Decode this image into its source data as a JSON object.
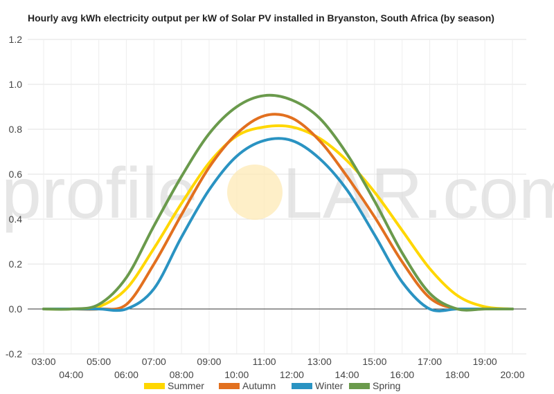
{
  "chart_data": {
    "type": "line",
    "title": "Hourly avg kWh electricity output per kW of Solar PV installed in Bryanston, South Africa (by season)",
    "xlabel": "",
    "ylabel": "",
    "ylim": [
      -0.2,
      1.2
    ],
    "yticks": [
      "-0.2",
      "0.0",
      "0.2",
      "0.4",
      "0.6",
      "0.8",
      "1.0",
      "1.2"
    ],
    "x": [
      "03:00",
      "04:00",
      "05:00",
      "06:00",
      "07:00",
      "08:00",
      "09:00",
      "10:00",
      "11:00",
      "12:00",
      "13:00",
      "14:00",
      "15:00",
      "16:00",
      "17:00",
      "18:00",
      "19:00",
      "20:00"
    ],
    "grid": true,
    "legend": "bottom",
    "series": [
      {
        "name": "Summer",
        "color": "#ffd700",
        "values": [
          0.0,
          0.0,
          0.01,
          0.09,
          0.27,
          0.47,
          0.65,
          0.77,
          0.81,
          0.81,
          0.76,
          0.66,
          0.52,
          0.35,
          0.18,
          0.06,
          0.01,
          0.0
        ]
      },
      {
        "name": "Autumn",
        "color": "#e2701f",
        "values": [
          0.0,
          0.0,
          0.0,
          0.02,
          0.2,
          0.42,
          0.63,
          0.78,
          0.86,
          0.85,
          0.75,
          0.59,
          0.41,
          0.21,
          0.05,
          0.0,
          0.0,
          0.0
        ]
      },
      {
        "name": "Winter",
        "color": "#2a93c2",
        "values": [
          0.0,
          0.0,
          0.0,
          0.0,
          0.09,
          0.32,
          0.53,
          0.68,
          0.75,
          0.75,
          0.67,
          0.53,
          0.33,
          0.12,
          0.0,
          0.0,
          0.0,
          0.0
        ]
      },
      {
        "name": "Spring",
        "color": "#6a9a4c",
        "values": [
          0.0,
          0.0,
          0.02,
          0.14,
          0.37,
          0.59,
          0.78,
          0.9,
          0.95,
          0.93,
          0.85,
          0.69,
          0.48,
          0.25,
          0.07,
          0.0,
          0.0,
          0.0
        ]
      }
    ]
  },
  "watermark": {
    "brand_left": "profile",
    "brand_o": "O",
    "brand_right": "LAR.com",
    "sun_color": "#fde9b5"
  }
}
